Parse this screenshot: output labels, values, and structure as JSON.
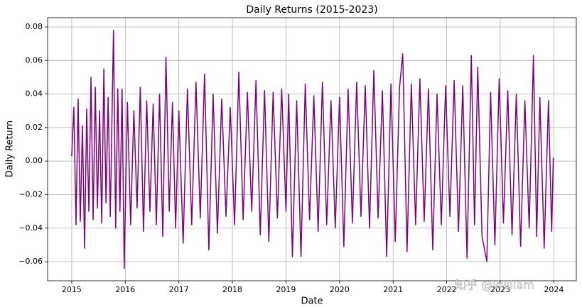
{
  "chart_data": {
    "type": "line",
    "title": "Daily Returns (2015-2023)",
    "x_label": "Date",
    "y_label": "Daily Return",
    "watermark": "知乎 @William",
    "grid": true,
    "xlim": [
      2014.55,
      2024.42
    ],
    "xticks": [
      2015,
      2016,
      2017,
      2018,
      2019,
      2020,
      2021,
      2022,
      2023,
      2024
    ],
    "ylim": [
      -0.0714,
      0.0855
    ],
    "yticks": [
      {
        "value": -0.06,
        "label": "−0.06"
      },
      {
        "value": -0.04,
        "label": "−0.04"
      },
      {
        "value": -0.02,
        "label": "−0.02"
      },
      {
        "value": 0,
        "label": "0.00"
      },
      {
        "value": 0.02,
        "label": "0.02"
      },
      {
        "value": 0.04,
        "label": "0.04"
      },
      {
        "value": 0.06,
        "label": "0.06"
      },
      {
        "value": 0.08,
        "label": "0.08"
      }
    ],
    "series": [
      {
        "name": "Daily Return",
        "color": "#800080",
        "x": [
          2015.0,
          2015.04,
          2015.08,
          2015.12,
          2015.16,
          2015.2,
          2015.24,
          2015.28,
          2015.32,
          2015.36,
          2015.4,
          2015.44,
          2015.48,
          2015.52,
          2015.56,
          2015.6,
          2015.64,
          2015.68,
          2015.72,
          2015.78,
          2015.82,
          2015.86,
          2015.9,
          2015.94,
          2015.98,
          2016.04,
          2016.1,
          2016.16,
          2016.22,
          2016.28,
          2016.34,
          2016.4,
          2016.46,
          2016.52,
          2016.58,
          2016.64,
          2016.7,
          2016.76,
          2016.82,
          2016.88,
          2016.94,
          2017.0,
          2017.08,
          2017.16,
          2017.24,
          2017.32,
          2017.4,
          2017.48,
          2017.56,
          2017.64,
          2017.72,
          2017.8,
          2017.88,
          2017.96,
          2018.04,
          2018.12,
          2018.2,
          2018.28,
          2018.36,
          2018.44,
          2018.52,
          2018.6,
          2018.68,
          2018.76,
          2018.84,
          2018.92,
          2019.0,
          2019.05,
          2019.12,
          2019.2,
          2019.28,
          2019.36,
          2019.44,
          2019.52,
          2019.6,
          2019.68,
          2019.76,
          2019.84,
          2019.92,
          2020.0,
          2020.08,
          2020.16,
          2020.24,
          2020.32,
          2020.4,
          2020.48,
          2020.56,
          2020.64,
          2020.72,
          2020.8,
          2020.88,
          2020.96,
          2021.04,
          2021.12,
          2021.18,
          2021.26,
          2021.34,
          2021.42,
          2021.5,
          2021.58,
          2021.66,
          2021.74,
          2021.82,
          2021.9,
          2021.98,
          2022.06,
          2022.14,
          2022.22,
          2022.3,
          2022.38,
          2022.46,
          2022.52,
          2022.58,
          2022.66,
          2022.75,
          2022.82,
          2022.9,
          2022.98,
          2023.06,
          2023.14,
          2023.22,
          2023.3,
          2023.38,
          2023.46,
          2023.54,
          2023.62,
          2023.68,
          2023.74,
          2023.82,
          2023.9,
          2023.96,
          2023.99
        ],
        "values": [
          0.003,
          0.032,
          -0.038,
          0.037,
          -0.036,
          0.021,
          -0.052,
          0.031,
          -0.03,
          0.05,
          -0.035,
          0.044,
          -0.028,
          0.03,
          -0.037,
          0.055,
          -0.025,
          0.038,
          -0.033,
          0.078,
          -0.04,
          0.043,
          -0.03,
          0.043,
          -0.064,
          0.035,
          -0.038,
          0.03,
          -0.028,
          0.044,
          -0.042,
          0.036,
          -0.03,
          0.034,
          -0.038,
          0.04,
          -0.045,
          0.062,
          -0.03,
          0.035,
          -0.04,
          0.03,
          -0.049,
          0.043,
          -0.038,
          0.047,
          -0.034,
          0.052,
          -0.053,
          0.04,
          -0.043,
          0.037,
          -0.033,
          0.032,
          -0.038,
          0.053,
          -0.035,
          0.041,
          -0.03,
          0.048,
          -0.044,
          0.042,
          -0.048,
          0.041,
          -0.034,
          0.043,
          -0.03,
          0.04,
          -0.057,
          0.036,
          -0.057,
          0.046,
          -0.035,
          0.039,
          -0.042,
          0.047,
          -0.038,
          0.036,
          -0.04,
          0.038,
          -0.051,
          0.043,
          -0.037,
          0.047,
          -0.033,
          0.045,
          -0.04,
          0.054,
          -0.034,
          0.042,
          -0.057,
          0.046,
          -0.048,
          0.044,
          0.064,
          -0.054,
          0.046,
          -0.038,
          0.049,
          -0.036,
          0.043,
          -0.053,
          0.04,
          -0.038,
          0.045,
          -0.033,
          0.048,
          -0.042,
          0.045,
          -0.058,
          0.063,
          -0.038,
          0.056,
          -0.045,
          -0.06,
          0.041,
          -0.05,
          0.049,
          -0.037,
          0.042,
          -0.044,
          0.04,
          -0.051,
          0.036,
          -0.04,
          0.063,
          -0.045,
          0.038,
          -0.052,
          0.036,
          -0.042,
          0.002
        ]
      }
    ]
  }
}
